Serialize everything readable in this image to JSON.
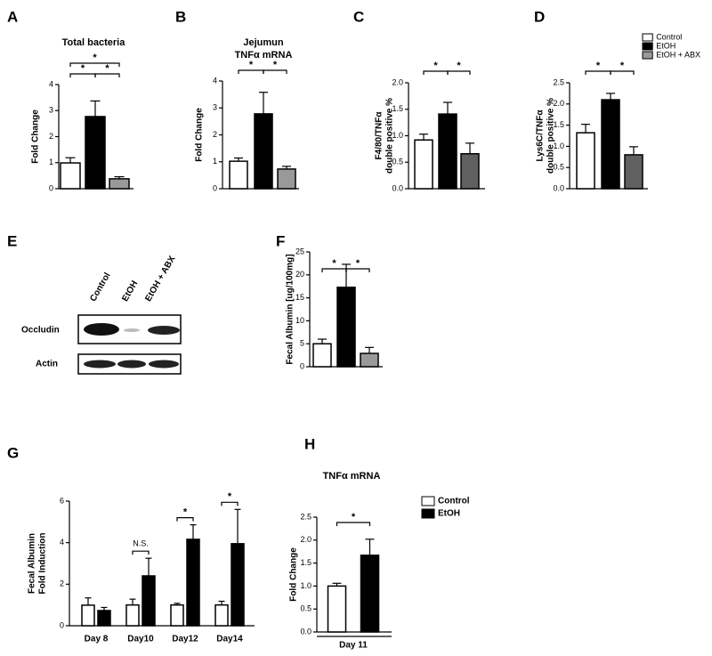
{
  "chart_data": [
    {
      "panel": "A",
      "type": "bar",
      "title": [
        "Total bacteria"
      ],
      "y_label": [
        "Fold Change"
      ],
      "categories": [
        null,
        null,
        null
      ],
      "values": [
        0.99,
        2.77,
        0.38
      ],
      "errors": [
        0.2,
        0.6,
        0.08
      ],
      "colors": [
        "#ffffff",
        "#000000",
        "#999999"
      ],
      "ylim": [
        0,
        4
      ],
      "yticks": [
        0,
        1,
        2,
        3,
        4
      ],
      "brackets": [
        {
          "from": 0,
          "to": 1,
          "label": "*"
        },
        {
          "from": 1,
          "to": 2,
          "label": "*"
        },
        {
          "from": 0,
          "to": 2,
          "label": "*"
        }
      ]
    },
    {
      "panel": "B",
      "type": "bar",
      "title": [
        "Jejumun",
        "TNFα mRNA"
      ],
      "y_label": [
        "Fold Change"
      ],
      "categories": [
        null,
        null,
        null
      ],
      "values": [
        1.02,
        2.78,
        0.73
      ],
      "errors": [
        0.12,
        0.8,
        0.1
      ],
      "colors": [
        "#ffffff",
        "#000000",
        "#999999"
      ],
      "ylim": [
        0,
        4
      ],
      "yticks": [
        0,
        1,
        2,
        3,
        4
      ],
      "brackets": [
        {
          "from": 0,
          "to": 1,
          "label": "*"
        },
        {
          "from": 1,
          "to": 2,
          "label": "*"
        }
      ]
    },
    {
      "panel": "C",
      "type": "bar",
      "y_label": [
        "F4/80/TNFα",
        "double positive %"
      ],
      "categories": [
        null,
        null,
        null
      ],
      "values": [
        0.92,
        1.41,
        0.66
      ],
      "errors": [
        0.11,
        0.22,
        0.2
      ],
      "colors": [
        "#ffffff",
        "#000000",
        "#606060"
      ],
      "ylim": [
        0,
        2.0
      ],
      "yticks": [
        {
          "value": 0,
          "label": "0.0"
        },
        0.5,
        {
          "value": 1,
          "label": "1.0"
        },
        1.5,
        {
          "value": 2,
          "label": "2.0"
        }
      ],
      "brackets": [
        {
          "from": 0,
          "to": 1,
          "label": "*"
        },
        {
          "from": 1,
          "to": 2,
          "label": "*"
        }
      ]
    },
    {
      "panel": "D",
      "type": "bar",
      "y_label": [
        "Lys6C/TNFα",
        "double positive %"
      ],
      "categories": [
        null,
        null,
        null
      ],
      "values": [
        1.32,
        2.1,
        0.8
      ],
      "errors": [
        0.2,
        0.15,
        0.19
      ],
      "colors": [
        "#ffffff",
        "#000000",
        "#606060"
      ],
      "ylim": [
        0,
        2.5
      ],
      "yticks": [
        {
          "value": 0,
          "label": "0.0"
        },
        0.5,
        {
          "value": 1,
          "label": "1.0"
        },
        1.5,
        {
          "value": 2,
          "label": "2.0"
        },
        2.5
      ],
      "brackets": [
        {
          "from": 0,
          "to": 1,
          "label": "*"
        },
        {
          "from": 1,
          "to": 2,
          "label": "*"
        }
      ],
      "legend": [
        {
          "name": "Control",
          "color": "#ffffff"
        },
        {
          "name": "EtOH",
          "color": "#000000"
        },
        {
          "name": "EtOH + ABX",
          "color": "#999999"
        }
      ]
    },
    {
      "panel": "F",
      "type": "bar",
      "y_label": [
        "Fecal Albumin [ug/100mg]"
      ],
      "categories": [
        null,
        null,
        null
      ],
      "values": [
        5.0,
        17.3,
        2.9
      ],
      "errors": [
        1.0,
        5.0,
        1.3
      ],
      "colors": [
        "#ffffff",
        "#000000",
        "#999999"
      ],
      "ylim": [
        0,
        25
      ],
      "yticks": [
        0,
        5,
        10,
        15,
        20,
        25
      ],
      "brackets": [
        {
          "from": 0,
          "to": 1,
          "label": "*"
        },
        {
          "from": 1,
          "to": 2,
          "label": "*"
        }
      ]
    },
    {
      "panel": "G",
      "type": "bar",
      "y_label": [
        "Fecal Albumin",
        "Fold Induction"
      ],
      "categories": [
        "Day 8",
        "Day10",
        "Day12",
        "Day14"
      ],
      "series": [
        {
          "color": "#ffffff",
          "values": [
            0.99,
            1.0,
            1.0,
            1.0
          ],
          "errors": [
            0.35,
            0.28,
            0.08,
            0.18
          ]
        },
        {
          "color": "#000000",
          "values": [
            0.73,
            2.4,
            4.16,
            3.95
          ],
          "errors": [
            0.15,
            0.85,
            0.7,
            1.65
          ]
        }
      ],
      "ylim": [
        0,
        6
      ],
      "yticks": [
        0,
        2,
        4,
        6
      ],
      "brackets": [
        {
          "category": 1,
          "label": "N.S."
        },
        {
          "category": 2,
          "label": "*"
        },
        {
          "category": 3,
          "label": "*"
        }
      ]
    },
    {
      "panel": "H",
      "type": "bar",
      "title": [
        "TNFα mRNA"
      ],
      "y_label": [
        "Fold Change"
      ],
      "categories": [
        "Day 11"
      ],
      "series": [
        {
          "name": "Control",
          "color": "#ffffff",
          "values": [
            1.0
          ],
          "errors": [
            0.06
          ]
        },
        {
          "name": "EtOH",
          "color": "#000000",
          "values": [
            1.67
          ],
          "errors": [
            0.35
          ]
        }
      ],
      "ylim": [
        0,
        2.5
      ],
      "yticks": [
        {
          "value": 0,
          "label": "0.0"
        },
        0.5,
        {
          "value": 1,
          "label": "1.0"
        },
        1.5,
        {
          "value": 2,
          "label": "2.0"
        },
        2.5
      ],
      "brackets": [
        {
          "series_from": 0,
          "series_to": 1,
          "label": "*"
        }
      ]
    }
  ],
  "blot": {
    "panel": "E",
    "lanes": [
      "Control",
      "EtOH",
      "EtOH + ABX"
    ],
    "rows": [
      "Occludin",
      "Actin"
    ]
  }
}
